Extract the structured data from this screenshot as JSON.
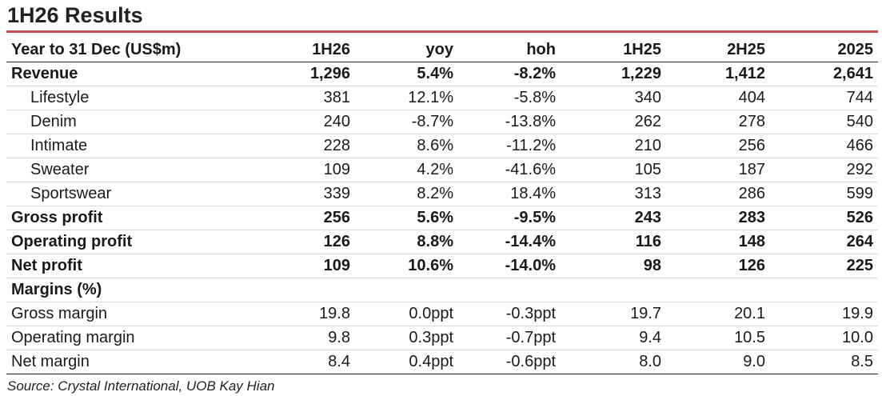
{
  "title": "1H26 Results",
  "table": {
    "header": [
      "Year to 31 Dec (US$m)",
      "1H26",
      "yoy",
      "hoh",
      "1H25",
      "2H25",
      "2025"
    ],
    "rows": [
      {
        "label": "Revenue",
        "values": [
          "1,296",
          "5.4%",
          "-8.2%",
          "1,229",
          "1,412",
          "2,641"
        ]
      },
      {
        "label": "Lifestyle",
        "values": [
          "381",
          "12.1%",
          "-5.8%",
          "340",
          "404",
          "744"
        ]
      },
      {
        "label": "Denim",
        "values": [
          "240",
          "-8.7%",
          "-13.8%",
          "262",
          "278",
          "540"
        ]
      },
      {
        "label": "Intimate",
        "values": [
          "228",
          "8.6%",
          "-11.2%",
          "210",
          "256",
          "466"
        ]
      },
      {
        "label": "Sweater",
        "values": [
          "109",
          "4.2%",
          "-41.6%",
          "105",
          "187",
          "292"
        ]
      },
      {
        "label": "Sportswear",
        "values": [
          "339",
          "8.2%",
          "18.4%",
          "313",
          "286",
          "599"
        ]
      },
      {
        "label": "Gross profit",
        "values": [
          "256",
          "5.6%",
          "-9.5%",
          "243",
          "283",
          "526"
        ]
      },
      {
        "label": "Operating profit",
        "values": [
          "126",
          "8.8%",
          "-14.4%",
          "116",
          "148",
          "264"
        ]
      },
      {
        "label": "Net profit",
        "values": [
          "109",
          "10.6%",
          "-14.0%",
          "98",
          "126",
          "225"
        ]
      },
      {
        "label": "Margins (%)",
        "values": [
          "",
          "",
          "",
          "",
          "",
          ""
        ]
      },
      {
        "label": "Gross margin",
        "values": [
          "19.8",
          "0.0ppt",
          "-0.3ppt",
          "19.7",
          "20.1",
          "19.9"
        ]
      },
      {
        "label": "Operating margin",
        "values": [
          "9.8",
          "0.3ppt",
          "-0.7ppt",
          "9.4",
          "10.5",
          "10.0"
        ]
      },
      {
        "label": "Net margin",
        "values": [
          "8.4",
          "0.4ppt",
          "-0.6ppt",
          "8.0",
          "9.0",
          "8.5"
        ]
      }
    ]
  },
  "source": "Source: Crystal International, UOB Kay Hian",
  "colors": {
    "accent_rule": "#c0504d"
  }
}
